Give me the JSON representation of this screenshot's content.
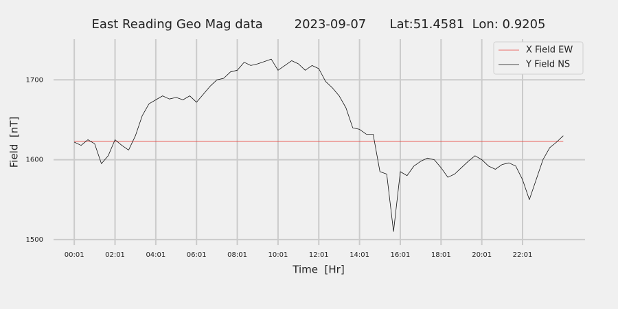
{
  "chart_data": {
    "type": "line",
    "title": "East Reading Geo Mag data        2023-09-07      Lat:51.4581  Lon: 0.9205",
    "x_label": "Time  [Hr]",
    "y_label": "Field  [nT]",
    "x": [
      1,
      21,
      41,
      61,
      81,
      101,
      121,
      141,
      161,
      181,
      201,
      221,
      241,
      261,
      281,
      301,
      321,
      341,
      361,
      381,
      401,
      421,
      441,
      461,
      481,
      501,
      521,
      541,
      561,
      581,
      601,
      621,
      641,
      661,
      681,
      701,
      721,
      741,
      761,
      781,
      801,
      821,
      841,
      861,
      881,
      901,
      921,
      941,
      961,
      981,
      1001,
      1021,
      1041,
      1061,
      1081,
      1101,
      1121,
      1141,
      1161,
      1181,
      1201,
      1221,
      1241,
      1261,
      1281,
      1301,
      1321,
      1341,
      1361,
      1381,
      1401,
      1421,
      1441
    ],
    "series": [
      {
        "name": "X Field EW",
        "color": "#e8413a",
        "values": [
          1623,
          1623,
          1623,
          1623,
          1623,
          1623,
          1623,
          1623,
          1623,
          1623,
          1623,
          1623,
          1623,
          1623,
          1623,
          1623,
          1623,
          1623,
          1623,
          1623,
          1623,
          1623,
          1623,
          1623,
          1623,
          1623,
          1623,
          1623,
          1623,
          1623,
          1623,
          1623,
          1623,
          1623,
          1623,
          1623,
          1623,
          1623,
          1623,
          1623,
          1623,
          1623,
          1623,
          1623,
          1623,
          1623,
          1623,
          1623,
          1623,
          1623,
          1623,
          1623,
          1623,
          1623,
          1623,
          1623,
          1623,
          1623,
          1623,
          1623,
          1623,
          1623,
          1623,
          1623,
          1623,
          1623,
          1623,
          1623,
          1623,
          1623,
          1623,
          1623,
          1623
        ]
      },
      {
        "name": "Y Field NS",
        "color": "#111111",
        "values": [
          1622,
          1618,
          1625,
          1620,
          1595,
          1605,
          1625,
          1618,
          1612,
          1630,
          1655,
          1670,
          1675,
          1680,
          1676,
          1678,
          1675,
          1680,
          1672,
          1682,
          1692,
          1700,
          1702,
          1710,
          1712,
          1722,
          1718,
          1720,
          1723,
          1726,
          1712,
          1718,
          1724,
          1720,
          1712,
          1718,
          1714,
          1698,
          1690,
          1680,
          1665,
          1640,
          1638,
          1632,
          1632,
          1585,
          1582,
          1510,
          1585,
          1580,
          1592,
          1598,
          1602,
          1600,
          1590,
          1578,
          1582,
          1590,
          1598,
          1605,
          1600,
          1592,
          1588,
          1594,
          1596,
          1592,
          1575,
          1550,
          1575,
          1600,
          1615,
          1622,
          1630
        ]
      }
    ],
    "xlim": [
      -60,
      1505
    ],
    "xticks": [
      {
        "value": 1,
        "label": "00:01"
      },
      {
        "value": 121,
        "label": "02:01"
      },
      {
        "value": 241,
        "label": "04:01"
      },
      {
        "value": 361,
        "label": "06:01"
      },
      {
        "value": 481,
        "label": "08:01"
      },
      {
        "value": 601,
        "label": "10:01"
      },
      {
        "value": 721,
        "label": "12:01"
      },
      {
        "value": 841,
        "label": "14:01"
      },
      {
        "value": 961,
        "label": "16:01"
      },
      {
        "value": 1081,
        "label": "18:01"
      },
      {
        "value": 1201,
        "label": "20:01"
      },
      {
        "value": 1321,
        "label": "22:01"
      }
    ],
    "ylim": [
      1493,
      1751
    ],
    "yticks": [
      1500,
      1600,
      1700
    ],
    "grid": true,
    "legend": "upper-right"
  }
}
